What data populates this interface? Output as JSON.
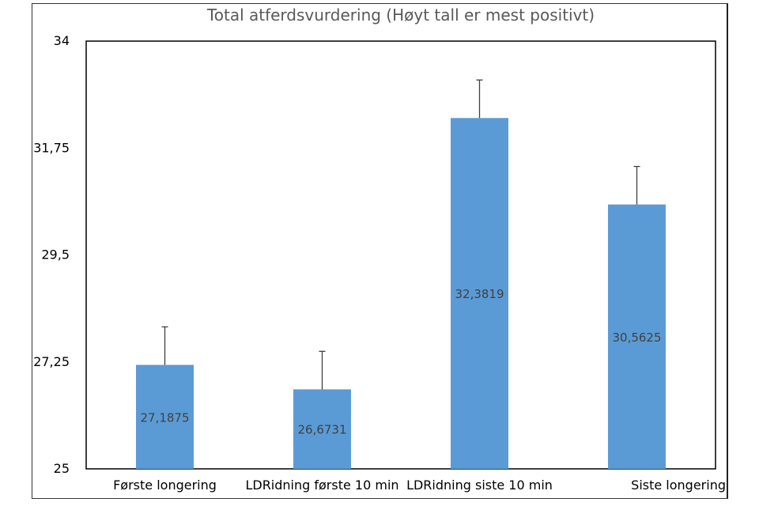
{
  "chart_data": {
    "type": "bar",
    "title": "Total atferdsvurdering (Høyt tall er mest positivt)",
    "xlabel": "",
    "ylabel": "",
    "categories": [
      "Første longering",
      "LDRidning  første 10 min",
      "LDRidning siste 10 min",
      "Siste longering"
    ],
    "values": [
      27.1875,
      26.6731,
      32.3819,
      30.5625
    ],
    "value_labels": [
      "27,1875",
      "26,6731",
      "32,3819",
      "30,5625"
    ],
    "error_plus": [
      0.8,
      0.8,
      0.8,
      0.8
    ],
    "ylim": [
      25,
      34
    ],
    "yticks": [
      25,
      27.25,
      29.5,
      31.75,
      34
    ],
    "ytick_labels": [
      "25",
      "27,25",
      "29,5",
      "31,75",
      "34"
    ],
    "grid": false,
    "legend": "none",
    "bar_color": "#5b9bd5",
    "error_bar_color": "#404040"
  }
}
